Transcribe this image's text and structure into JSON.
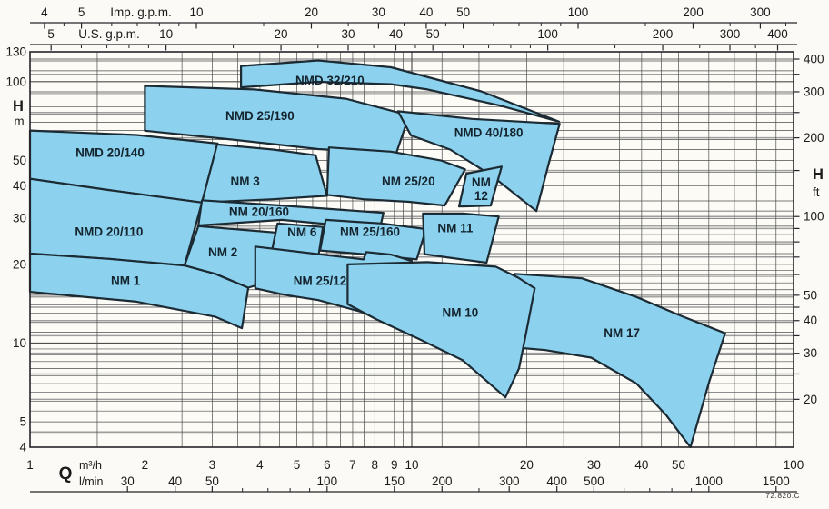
{
  "chart_data": {
    "type": "area",
    "description": "Pump range selection chart: head H versus capacity Q on log-log axes, blue coverage envelopes per pump model",
    "figure_code": "72.820.C",
    "colors": {
      "region_fill": "#8CD2EE",
      "region_stroke": "#1B2A33",
      "grid_dark": "#4D4D4D",
      "grid_gray": "#9E9E9E",
      "axis_line": "#26262A",
      "text": "#1A1A1A",
      "label_text": "#14242E",
      "plot_bg": "#FCFBF6"
    },
    "x": {
      "label": "Q",
      "scale": "log",
      "range_m3h": [
        1,
        100
      ],
      "rows": {
        "imp_gpm": {
          "label": "Imp. g.p.m.",
          "factor_to_m3h": 0.27276,
          "major": [
            4,
            5,
            10,
            20,
            30,
            40,
            50,
            100,
            200,
            300
          ],
          "minor": [
            4.5,
            6,
            7,
            8,
            9,
            15,
            25,
            35,
            45,
            60,
            70,
            80,
            90,
            150,
            250,
            350
          ]
        },
        "us_gpm": {
          "label": "U.S. g.p.m.",
          "factor_to_m3h": 0.22712,
          "major": [
            5,
            10,
            20,
            30,
            40,
            50,
            100,
            200,
            300,
            400
          ],
          "minor": [
            6,
            7,
            8,
            9,
            15,
            25,
            35,
            45,
            60,
            70,
            80,
            90,
            150,
            250,
            350
          ]
        },
        "m3h": {
          "label": "m³/h",
          "major": [
            1,
            2,
            3,
            4,
            5,
            6,
            7,
            8,
            9,
            10,
            20,
            30,
            40,
            50,
            100
          ]
        },
        "lmin": {
          "label": "l/min",
          "factor_to_m3h": 0.06,
          "major": [
            30,
            40,
            50,
            100,
            150,
            200,
            300,
            400,
            500,
            1000,
            1500
          ],
          "minor": [
            60,
            70,
            80,
            90,
            250,
            600,
            700,
            800,
            900
          ]
        }
      }
    },
    "y": {
      "label_left": "H",
      "unit_left": "m",
      "scale": "log",
      "range_m": [
        4,
        130
      ],
      "left_labeled": [
        130,
        100,
        50,
        40,
        30,
        20,
        10,
        5,
        4
      ],
      "label_right": "H",
      "unit_right": "ft",
      "factor_ft_to_m": 0.3048,
      "right_labeled": [
        400,
        300,
        200,
        100,
        50,
        40,
        30,
        20
      ],
      "right_ticks": [
        20,
        25,
        30,
        35,
        40,
        45,
        50,
        60,
        70,
        80,
        90,
        100,
        150,
        200,
        250,
        300,
        350,
        400
      ]
    },
    "grid": {
      "x_lines_m3h": [
        1,
        1.5,
        2,
        2.5,
        3,
        3.5,
        4,
        4.5,
        5,
        5.5,
        6,
        6.5,
        7,
        7.5,
        8,
        8.5,
        9,
        9.5,
        10,
        12,
        15,
        20,
        25,
        30,
        35,
        40,
        45,
        50,
        60,
        70,
        80,
        90,
        100
      ],
      "y_lines_m": [
        4,
        4.5,
        5,
        5.5,
        6,
        6.5,
        7,
        7.5,
        8,
        8.5,
        9,
        9.5,
        10,
        11,
        12,
        13,
        14,
        15,
        16,
        17,
        18,
        19,
        20,
        22,
        24,
        26,
        28,
        30,
        32,
        35,
        40,
        45,
        50,
        55,
        60,
        65,
        70,
        75,
        80,
        90,
        100,
        110,
        120,
        130
      ],
      "y_lines_ft": [
        15,
        20,
        25,
        30,
        35,
        40,
        45,
        50,
        60,
        70,
        80,
        90,
        100,
        150,
        200,
        250,
        300,
        350,
        400
      ]
    },
    "regions": [
      {
        "id": "nmd-25-190",
        "name": "NMD 25/190",
        "label_lines": [
          "NMD 25/190"
        ],
        "label_at": [
          4.0,
          74
        ],
        "points": [
          [
            2.0,
            96.3
          ],
          [
            3.87,
            93.3
          ],
          [
            6.72,
            86
          ],
          [
            9.84,
            74.3
          ],
          [
            9.1,
            53.1
          ],
          [
            5.69,
            55.2
          ],
          [
            3.29,
            60.3
          ],
          [
            2.0,
            64.9
          ]
        ]
      },
      {
        "id": "nmd-32-210",
        "name": "NMD 32/210",
        "label_lines": [
          "NMD 32/210"
        ],
        "label_at": [
          6.1,
          101
        ],
        "points": [
          [
            3.57,
            114.7
          ],
          [
            5.69,
            120.5
          ],
          [
            8.82,
            113.5
          ],
          [
            15.2,
            91.8
          ],
          [
            24.3,
            70.3
          ],
          [
            17.0,
            81.0
          ],
          [
            11.0,
            93.3
          ],
          [
            8.82,
            97.8
          ],
          [
            5.69,
            99.8
          ],
          [
            3.57,
            95.1
          ]
        ]
      },
      {
        "id": "nmd-40-180",
        "name": "NMD 40/180",
        "label_lines": [
          "NMD 40/180"
        ],
        "label_at": [
          15.9,
          63.8
        ],
        "points": [
          [
            9.2,
            77
          ],
          [
            14.4,
            72
          ],
          [
            24.4,
            69
          ],
          [
            22.9,
            49.2
          ],
          [
            21.2,
            32
          ],
          [
            16.1,
            44
          ],
          [
            12.6,
            55
          ],
          [
            9.95,
            62.3
          ]
        ]
      },
      {
        "id": "nmd-20-140",
        "name": "NMD 20/140",
        "label_lines": [
          "NMD 20/140"
        ],
        "label_at": [
          1.62,
          53.5
        ],
        "points": [
          [
            1,
            65
          ],
          [
            1.9,
            62.5
          ],
          [
            3.1,
            58
          ],
          [
            2.82,
            34.5
          ],
          [
            1.61,
            38.5
          ],
          [
            1,
            42.5
          ]
        ]
      },
      {
        "id": "nmd-20-110",
        "name": "NMD 20/110",
        "label_lines": [
          "NMD 20/110"
        ],
        "label_at": [
          1.61,
          26.7
        ],
        "points": [
          [
            1,
            42.5
          ],
          [
            1.61,
            38.5
          ],
          [
            2.82,
            34.5
          ],
          [
            2.54,
            19.8
          ],
          [
            1.61,
            21
          ],
          [
            1,
            22
          ]
        ]
      },
      {
        "id": "nm-1",
        "name": "NM 1",
        "label_lines": [
          "NM 1"
        ],
        "label_at": [
          1.78,
          17.3
        ],
        "points": [
          [
            1,
            22
          ],
          [
            1.61,
            21
          ],
          [
            2.54,
            19.8
          ],
          [
            3.06,
            18.4
          ],
          [
            3.73,
            16.3
          ],
          [
            3.59,
            11.4
          ],
          [
            3.06,
            12.6
          ],
          [
            1.9,
            14.4
          ],
          [
            1,
            15.7
          ]
        ]
      },
      {
        "id": "nm-3",
        "name": "NM 3",
        "label_lines": [
          "NM 3"
        ],
        "label_at": [
          3.66,
          41.5
        ],
        "points": [
          [
            3.09,
            57.5
          ],
          [
            4.33,
            55
          ],
          [
            5.6,
            52.3
          ],
          [
            6.0,
            36.6
          ],
          [
            4.33,
            35.5
          ],
          [
            2.82,
            34.5
          ]
        ]
      },
      {
        "id": "nm-25-20",
        "name": "NM 25/20",
        "label_lines": [
          "NM 25/20"
        ],
        "label_at": [
          9.8,
          41.5
        ],
        "points": [
          [
            6.07,
            56
          ],
          [
            8.82,
            54
          ],
          [
            11.9,
            50
          ],
          [
            13.8,
            46.2
          ],
          [
            12.2,
            33.6
          ],
          [
            9.84,
            34.7
          ],
          [
            7.48,
            35.5
          ],
          [
            6.0,
            36.9
          ]
        ]
      },
      {
        "id": "nm-12",
        "name": "NM 12",
        "label_lines": [
          "NM",
          "12"
        ],
        "label_at": [
          15.2,
          39
        ],
        "points": [
          [
            13.9,
            44.5
          ],
          [
            17.2,
            47.3
          ],
          [
            16.1,
            33.6
          ],
          [
            13.3,
            33.3
          ]
        ]
      },
      {
        "id": "nm-20-160",
        "name": "NM 20/160",
        "label_lines": [
          "NM 20/160"
        ],
        "label_at": [
          3.98,
          31.8
        ],
        "points": [
          [
            2.82,
            35.2
          ],
          [
            4.57,
            33.6
          ],
          [
            8.43,
            31.5
          ],
          [
            8.25,
            27.3
          ],
          [
            4.57,
            29.6
          ],
          [
            2.76,
            28.2
          ]
        ]
      },
      {
        "id": "nm-2",
        "name": "NM 2",
        "label_lines": [
          "NM 2"
        ],
        "label_at": [
          3.2,
          22.3
        ],
        "points": [
          [
            2.76,
            28
          ],
          [
            4.65,
            26.3
          ],
          [
            4.88,
            18.3
          ],
          [
            3.73,
            16.3
          ],
          [
            3.06,
            18.4
          ],
          [
            2.54,
            19.8
          ]
        ]
      },
      {
        "id": "nm-6",
        "name": "NM 6",
        "label_lines": [
          "NM 6"
        ],
        "label_at": [
          5.16,
          26.5
        ],
        "points": [
          [
            4.45,
            28.7
          ],
          [
            5.85,
            27.8
          ],
          [
            5.69,
            21.3
          ],
          [
            4.28,
            21.8
          ]
        ]
      },
      {
        "id": "nm-25-160",
        "name": "NM 25/160",
        "label_lines": [
          "NM 25/160"
        ],
        "label_at": [
          7.77,
          26.7
        ],
        "points": [
          [
            5.95,
            29.6
          ],
          [
            8.33,
            28.7
          ],
          [
            10.9,
            27.3
          ],
          [
            10.3,
            20.9
          ],
          [
            7.48,
            21.9
          ],
          [
            5.75,
            22.6
          ]
        ]
      },
      {
        "id": "nm-11",
        "name": "NM 11",
        "label_lines": [
          "NM 11"
        ],
        "label_at": [
          13.0,
          27.5
        ],
        "points": [
          [
            10.7,
            31.3
          ],
          [
            13.6,
            31.3
          ],
          [
            16.9,
            30.5
          ],
          [
            15.7,
            20.3
          ],
          [
            12.3,
            21.3
          ],
          [
            10.8,
            21.9
          ]
        ]
      },
      {
        "id": "nm-25-12",
        "name": "NM 25/12",
        "label_lines": [
          "NM 25/12"
        ],
        "label_at": [
          5.75,
          17.3
        ],
        "points": [
          [
            3.89,
            23.4
          ],
          [
            5.69,
            21.9
          ],
          [
            7.48,
            20.9
          ],
          [
            7.6,
            22.3
          ],
          [
            8.82,
            21.8
          ],
          [
            10.0,
            20.6
          ],
          [
            9.62,
            14.7
          ],
          [
            9.32,
            11.7
          ],
          [
            7.48,
            13.1
          ],
          [
            5.69,
            14.6
          ],
          [
            4.65,
            15.3
          ],
          [
            3.89,
            16.2
          ]
        ]
      },
      {
        "id": "nm-17",
        "name": "NM 17",
        "label_lines": [
          "NM 17"
        ],
        "label_at": [
          35.5,
          10.9
        ],
        "points": [
          [
            18.6,
            18.4
          ],
          [
            27.9,
            17.7
          ],
          [
            38.8,
            15.0
          ],
          [
            50.8,
            12.7
          ],
          [
            66.2,
            10.9
          ],
          [
            60.1,
            7.1
          ],
          [
            53.7,
            4.0
          ],
          [
            46.4,
            5.3
          ],
          [
            38.8,
            7.0
          ],
          [
            29.5,
            8.8
          ],
          [
            22.4,
            9.4
          ],
          [
            19.0,
            9.6
          ]
        ]
      },
      {
        "id": "nm-10",
        "name": "NM 10",
        "label_lines": [
          "NM 10"
        ],
        "label_at": [
          13.4,
          13.1
        ],
        "points": [
          [
            6.79,
            20
          ],
          [
            11.0,
            20.4
          ],
          [
            16.6,
            19.6
          ],
          [
            19.0,
            17.8
          ],
          [
            21.0,
            16.2
          ],
          [
            19.9,
            10.8
          ],
          [
            19.1,
            8.0
          ],
          [
            17.6,
            6.2
          ],
          [
            13.6,
            8.6
          ],
          [
            10.4,
            10.4
          ],
          [
            8.1,
            12.3
          ],
          [
            6.79,
            14.1
          ]
        ]
      }
    ]
  }
}
